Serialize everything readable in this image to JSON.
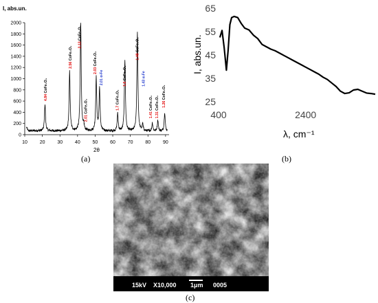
{
  "chart_data": [
    {
      "type": "line",
      "panel": "(a)",
      "ylabel": "I, abs.un.",
      "xlabel": "2θ",
      "xlim": [
        10,
        92
      ],
      "ylim": [
        0,
        2000
      ],
      "x_ticks": [
        10,
        20,
        30,
        40,
        50,
        60,
        70,
        80,
        90
      ],
      "y_ticks": [
        0,
        200,
        400,
        600,
        800,
        1000,
        1200,
        1400,
        1600,
        1800,
        2000
      ],
      "series": [
        {
          "color": "#000000",
          "peaks": [
            {
              "x": 21.5,
              "y": 540
            },
            {
              "x": 35.5,
              "y": 1120
            },
            {
              "x": 41.8,
              "y": 1990
            },
            {
              "x": 43.5,
              "y": 160
            },
            {
              "x": 50.6,
              "y": 1010
            },
            {
              "x": 52.5,
              "y": 820
            },
            {
              "x": 62.8,
              "y": 370
            },
            {
              "x": 66.9,
              "y": 1340
            },
            {
              "x": 74.0,
              "y": 1820
            },
            {
              "x": 77.0,
              "y": 180
            },
            {
              "x": 82.5,
              "y": 210
            },
            {
              "x": 85.6,
              "y": 260
            },
            {
              "x": 89.5,
              "y": 400
            }
          ]
        }
      ],
      "annotations": [
        {
          "d": "4.84",
          "phase": "CoFe₂O₄",
          "d_color": "#e00000",
          "phase_color": "#000000",
          "x": 21.5,
          "y": 600
        },
        {
          "d": "2.56",
          "phase": "CoFe₂O₄",
          "d_color": "#e00000",
          "phase_color": "#000000",
          "x": 35.5,
          "y": 1180
        },
        {
          "d": "2.13",
          "phase": "CoFe₂O₄",
          "d_color": "#e00000",
          "phase_color": "#000000",
          "x": 40.8,
          "y": 1540
        },
        {
          "d": "2.01",
          "phase": "CoFe₂O₄",
          "d_color": "#e00000",
          "phase_color": "#000000",
          "x": 44.3,
          "y": 230
        },
        {
          "d": "2.03",
          "phase": "CoFe₂O₄",
          "d_color": "#e00000",
          "phase_color": "#000000",
          "x": 49.6,
          "y": 1080
        },
        {
          "d": "2.01",
          "phase": "α-Fe",
          "d_color": "#1a33cc",
          "phase_color": "#1a33cc",
          "x": 53.2,
          "y": 880
        },
        {
          "d": "1.7",
          "phase": "CoFe₂O₄",
          "d_color": "#e00000",
          "phase_color": "#000000",
          "x": 62.3,
          "y": 430
        },
        {
          "d": "1.6",
          "phase": "CoFe₂O₄",
          "d_color": "#e00000",
          "phase_color": "#000000",
          "x": 66.4,
          "y": 860
        },
        {
          "d": "1.48",
          "phase": "CoFe₂O₄",
          "d_color": "#e00000",
          "phase_color": "#000000",
          "x": 73.7,
          "y": 1330
        },
        {
          "d": "1.43",
          "phase": "α-Fe",
          "d_color": "#1a33cc",
          "phase_color": "#1a33cc",
          "x": 77.2,
          "y": 860
        },
        {
          "d": "1.41",
          "phase": "CoFe₂O₄",
          "d_color": "#e00000",
          "phase_color": "#000000",
          "x": 81.3,
          "y": 290
        },
        {
          "d": "1.31",
          "phase": "CoFe₂O₄",
          "d_color": "#e00000",
          "phase_color": "#000000",
          "x": 84.7,
          "y": 290
        },
        {
          "d": "1.26",
          "phase": "CoFe₂O₄",
          "d_color": "#e00000",
          "phase_color": "#000000",
          "x": 88.6,
          "y": 480
        }
      ]
    },
    {
      "type": "line",
      "panel": "(b)",
      "ylabel": "I, abs.un.",
      "xlabel": "λ, cm⁻¹",
      "xlim": [
        400,
        4000
      ],
      "ylim": [
        25,
        65
      ],
      "x_ticks": [
        400,
        2400
      ],
      "y_ticks": [
        25,
        35,
        45,
        55,
        65
      ],
      "series": [
        {
          "color": "#000000",
          "x": [
            430,
            480,
            530,
            580,
            620,
            660,
            700,
            760,
            840,
            920,
            1000,
            1100,
            1200,
            1300,
            1400,
            1500,
            1600,
            1700,
            1800,
            1900,
            2000,
            2100,
            2200,
            2300,
            2400,
            2500,
            2600,
            2700,
            2800,
            2900,
            3000,
            3100,
            3200,
            3300,
            3400,
            3500,
            3600,
            3700,
            3800,
            3900,
            4000
          ],
          "y": [
            52.5,
            55.5,
            48.0,
            38.5,
            47.0,
            58.0,
            61.0,
            61.5,
            61.0,
            58.5,
            56.5,
            55.7,
            53.5,
            52.0,
            49.5,
            48.5,
            47.5,
            46.8,
            45.8,
            44.8,
            43.8,
            42.8,
            41.8,
            40.8,
            39.8,
            38.8,
            37.8,
            36.8,
            35.5,
            34.5,
            33.0,
            31.5,
            29.5,
            28.5,
            28.8,
            30.0,
            30.3,
            29.5,
            28.7,
            28.5,
            28.2
          ]
        }
      ]
    }
  ],
  "captions": {
    "a": "(a)",
    "b": "(b)",
    "c": "(c)"
  },
  "sem": {
    "voltage": "15kV",
    "magnification": "X10,000",
    "scale": "1μm",
    "image_number": "0005"
  }
}
